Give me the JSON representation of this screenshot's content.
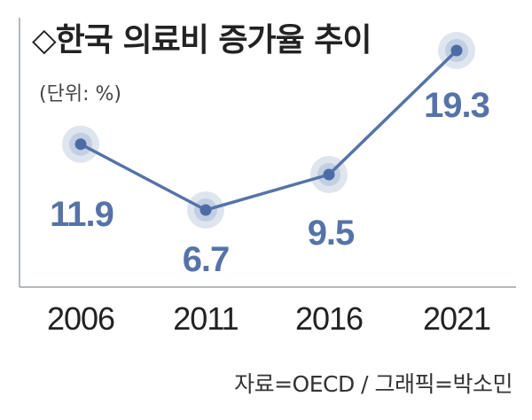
{
  "title": "◇한국 의료비 증가율 추이",
  "unit": "(단위: %)",
  "source": "자료=OECD / 그래픽=박소민",
  "colors": {
    "line": "#5573a8",
    "marker": "#4d6ca6",
    "halo": "#dfe5ee",
    "halo_inner": "#a9bbdb",
    "label": "#5573a8",
    "axis": "#9aa0a8",
    "tick_text": "#222222"
  },
  "chart_data": {
    "type": "line",
    "title": "◇한국 의료비 증가율 추이",
    "xlabel": "",
    "ylabel": "(단위: %)",
    "categories": [
      "2006",
      "2011",
      "2016",
      "2021"
    ],
    "series": [
      {
        "name": "의료비 증가율",
        "values": [
          11.9,
          6.7,
          9.5,
          19.3
        ]
      }
    ],
    "value_labels": [
      "11.9",
      "6.7",
      "9.5",
      "19.3"
    ],
    "grid": false,
    "legend": "none"
  }
}
